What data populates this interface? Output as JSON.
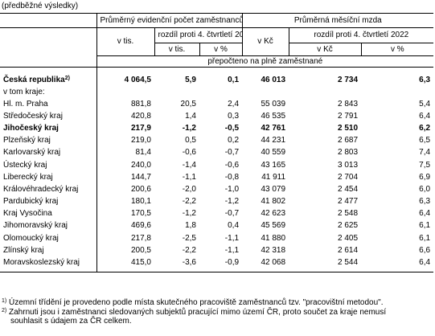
{
  "caption": "(předběžné výsledky)",
  "header": {
    "group1": "Průměrný evidenční počet zaměstnanců",
    "group2": "Průměrná měsíční mzda",
    "v_tis": "v tis.",
    "v_kc": "v Kč",
    "diff": "rozdíl proti 4. čtvrtletí 2022",
    "diff_v_tis": "v tis.",
    "diff_pct1": "v %",
    "diff_v_kc": "v Kč",
    "diff_pct2": "v %",
    "recalc": "přepočteno na plně zaměstnané"
  },
  "country": {
    "name": "Česká republika",
    "sup": "2)",
    "emp": "4 064,5",
    "emp_diff": "5,9",
    "emp_pct": "0,1",
    "wage": "46 013",
    "wage_diff": "2 734",
    "wage_pct": "6,3"
  },
  "in_regions_label": "v tom kraje:",
  "regions": [
    {
      "name": "Hl. m. Praha",
      "emp": "881,8",
      "emp_diff": "20,5",
      "emp_pct": "2,4",
      "wage": "55 039",
      "wage_diff": "2 843",
      "wage_pct": "5,4"
    },
    {
      "name": "Středočeský kraj",
      "emp": "420,8",
      "emp_diff": "1,4",
      "emp_pct": "0,3",
      "wage": "46 535",
      "wage_diff": "2 791",
      "wage_pct": "6,4"
    },
    {
      "name": "Jihočeský kraj",
      "emp": "217,9",
      "emp_diff": "-1,2",
      "emp_pct": "-0,5",
      "wage": "42 761",
      "wage_diff": "2 510",
      "wage_pct": "6,2"
    },
    {
      "name": "Plzeňský kraj",
      "emp": "219,0",
      "emp_diff": "0,5",
      "emp_pct": "0,2",
      "wage": "44 231",
      "wage_diff": "2 687",
      "wage_pct": "6,5"
    },
    {
      "name": "Karlovarský kraj",
      "emp": "81,4",
      "emp_diff": "-0,6",
      "emp_pct": "-0,7",
      "wage": "40 559",
      "wage_diff": "2 803",
      "wage_pct": "7,4"
    },
    {
      "name": "Ústecký kraj",
      "emp": "240,0",
      "emp_diff": "-1,4",
      "emp_pct": "-0,6",
      "wage": "43 165",
      "wage_diff": "3 013",
      "wage_pct": "7,5"
    },
    {
      "name": "Liberecký kraj",
      "emp": "144,7",
      "emp_diff": "-1,1",
      "emp_pct": "-0,8",
      "wage": "41 911",
      "wage_diff": "2 704",
      "wage_pct": "6,9"
    },
    {
      "name": "Královéhradecký kraj",
      "emp": "200,6",
      "emp_diff": "-2,0",
      "emp_pct": "-1,0",
      "wage": "43 079",
      "wage_diff": "2 454",
      "wage_pct": "6,0"
    },
    {
      "name": "Pardubický kraj",
      "emp": "180,1",
      "emp_diff": "-2,2",
      "emp_pct": "-1,2",
      "wage": "41 802",
      "wage_diff": "2 477",
      "wage_pct": "6,3"
    },
    {
      "name": "Kraj Vysočina",
      "emp": "170,5",
      "emp_diff": "-1,2",
      "emp_pct": "-0,7",
      "wage": "42 623",
      "wage_diff": "2 548",
      "wage_pct": "6,4"
    },
    {
      "name": "Jihomoravský kraj",
      "emp": "469,6",
      "emp_diff": "1,8",
      "emp_pct": "0,4",
      "wage": "45 569",
      "wage_diff": "2 625",
      "wage_pct": "6,1"
    },
    {
      "name": "Olomoucký kraj",
      "emp": "217,8",
      "emp_diff": "-2,5",
      "emp_pct": "-1,1",
      "wage": "41 880",
      "wage_diff": "2 405",
      "wage_pct": "6,1"
    },
    {
      "name": "Zlínský kraj",
      "emp": "200,5",
      "emp_diff": "-2,2",
      "emp_pct": "-1,1",
      "wage": "42 318",
      "wage_diff": "2 614",
      "wage_pct": "6,6"
    },
    {
      "name": "Moravskoslezský kraj",
      "emp": "415,0",
      "emp_diff": "-3,6",
      "emp_pct": "-0,9",
      "wage": "42 068",
      "wage_diff": "2 544",
      "wage_pct": "6,4"
    }
  ],
  "bold_region_index": 2,
  "notes": [
    {
      "mark": "1)",
      "text": "Územní třídění je  provedeno  podle  místa skutečného pracoviště zaměstnanců tzv. \"pracovištní metodou\".",
      "cont": ""
    },
    {
      "mark": "2)",
      "text": "Zahrnuti jsou i zaměstnanci sledovaných subjektů pracující mimo území ČR, proto součet za kraje nemusí",
      "cont": "souhlasit s údajem za ČR celkem."
    }
  ]
}
